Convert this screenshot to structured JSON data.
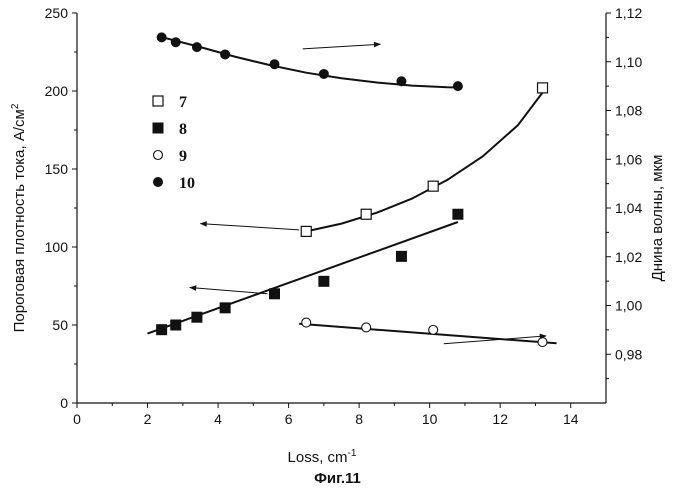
{
  "caption": "Фиг.11",
  "chart_data": {
    "type": "scatter",
    "title": "",
    "xlabel": "Loss, cm",
    "xlabel_sup": "-1",
    "ylabel": "Пороговая плотность тока, A/см",
    "ylabel_sup": "2",
    "y2label": "Днина волны, мкм",
    "xlim": [
      0,
      15
    ],
    "ylim": [
      0,
      250
    ],
    "y2lim": [
      0.96,
      1.12
    ],
    "xticks": [
      0,
      2,
      4,
      6,
      8,
      10,
      12,
      14
    ],
    "yticks": [
      0,
      50,
      100,
      150,
      200,
      250
    ],
    "y2ticks": [
      0.98,
      1.0,
      1.02,
      1.04,
      1.06,
      1.08,
      1.1,
      1.12
    ],
    "y2tick_labels": [
      "0,98",
      "1,00",
      "1,02",
      "1,04",
      "1,06",
      "1,08",
      "1,10",
      "1,12"
    ],
    "grid": false,
    "legend_position": "upper-left",
    "series": [
      {
        "name": "7",
        "marker": "open-square",
        "axis": "left",
        "points": [
          [
            6.5,
            110
          ],
          [
            8.2,
            121
          ],
          [
            10.1,
            139
          ],
          [
            13.2,
            202
          ]
        ],
        "fit": [
          [
            6.5,
            110
          ],
          [
            7.5,
            115
          ],
          [
            8.5,
            122
          ],
          [
            9.5,
            131
          ],
          [
            10.5,
            143
          ],
          [
            11.5,
            158
          ],
          [
            12.5,
            178
          ],
          [
            13.2,
            199
          ]
        ]
      },
      {
        "name": "8",
        "marker": "filled-square",
        "axis": "left",
        "points": [
          [
            2.4,
            47
          ],
          [
            2.8,
            50
          ],
          [
            3.4,
            55
          ],
          [
            4.2,
            61
          ],
          [
            5.6,
            70
          ],
          [
            7.0,
            78
          ],
          [
            9.2,
            94
          ],
          [
            10.8,
            121
          ]
        ],
        "fit": [
          [
            2.0,
            44.5
          ],
          [
            10.8,
            116
          ]
        ]
      },
      {
        "name": "9",
        "marker": "open-circle",
        "axis": "right",
        "points": [
          [
            6.5,
            0.993
          ],
          [
            8.2,
            0.991
          ],
          [
            10.1,
            0.99
          ],
          [
            13.2,
            0.985
          ]
        ],
        "fit": [
          [
            6.3,
            0.9925
          ],
          [
            13.6,
            0.9845
          ]
        ]
      },
      {
        "name": "10",
        "marker": "filled-circle",
        "axis": "right",
        "points": [
          [
            2.4,
            1.11
          ],
          [
            2.8,
            1.108
          ],
          [
            3.4,
            1.106
          ],
          [
            4.2,
            1.103
          ],
          [
            5.6,
            1.099
          ],
          [
            7.0,
            1.095
          ],
          [
            9.2,
            1.092
          ],
          [
            10.8,
            1.09
          ]
        ],
        "fit": [
          [
            2.3,
            1.1105
          ],
          [
            3.5,
            1.106
          ],
          [
            4.5,
            1.102
          ],
          [
            5.5,
            1.0985
          ],
          [
            6.5,
            1.0955
          ],
          [
            7.5,
            1.0932
          ],
          [
            8.5,
            1.0915
          ],
          [
            9.5,
            1.0902
          ],
          [
            10.5,
            1.0895
          ],
          [
            10.9,
            1.0894
          ]
        ]
      }
    ],
    "annotations": [
      {
        "type": "arrow",
        "axis": "left",
        "from": [
          6.4,
          227
        ],
        "to": [
          8.6,
          230
        ],
        "target": "right"
      },
      {
        "type": "arrow",
        "axis": "left",
        "from": [
          6.3,
          111
        ],
        "to": [
          3.5,
          115
        ],
        "target": "left"
      },
      {
        "type": "arrow",
        "axis": "left",
        "from": [
          5.4,
          70
        ],
        "to": [
          3.2,
          74
        ],
        "target": "left"
      },
      {
        "type": "arrow",
        "axis": "left",
        "from": [
          10.4,
          38
        ],
        "to": [
          13.3,
          43
        ],
        "target": "right"
      }
    ]
  }
}
